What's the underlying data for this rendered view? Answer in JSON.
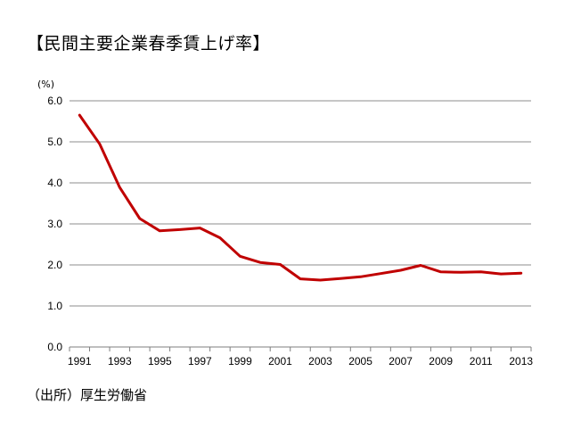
{
  "title": "【民間主要企業春季賃上げ率】",
  "source": "（出所）厚生労働省",
  "chart_data": {
    "type": "line",
    "ylabel": "(%)",
    "ylim": [
      0,
      6
    ],
    "yticks": [
      "0.0",
      "1.0",
      "2.0",
      "3.0",
      "4.0",
      "5.0",
      "6.0"
    ],
    "xticks": [
      "1991",
      "1993",
      "1995",
      "1997",
      "1999",
      "2001",
      "2003",
      "2005",
      "2007",
      "2009",
      "2011",
      "2013"
    ],
    "grid": true,
    "line_color": "#c00000",
    "series": [
      {
        "x": [
          1991,
          1992,
          1993,
          1994,
          1995,
          1996,
          1997,
          1998,
          1999,
          2000,
          2001,
          2002,
          2003,
          2004,
          2005,
          2006,
          2007,
          2008,
          2009,
          2010,
          2011,
          2012,
          2013
        ],
        "values": [
          5.65,
          4.95,
          3.89,
          3.13,
          2.83,
          2.86,
          2.9,
          2.66,
          2.21,
          2.06,
          2.01,
          1.66,
          1.63,
          1.67,
          1.71,
          1.79,
          1.87,
          1.99,
          1.83,
          1.82,
          1.83,
          1.78,
          1.8
        ]
      }
    ]
  }
}
